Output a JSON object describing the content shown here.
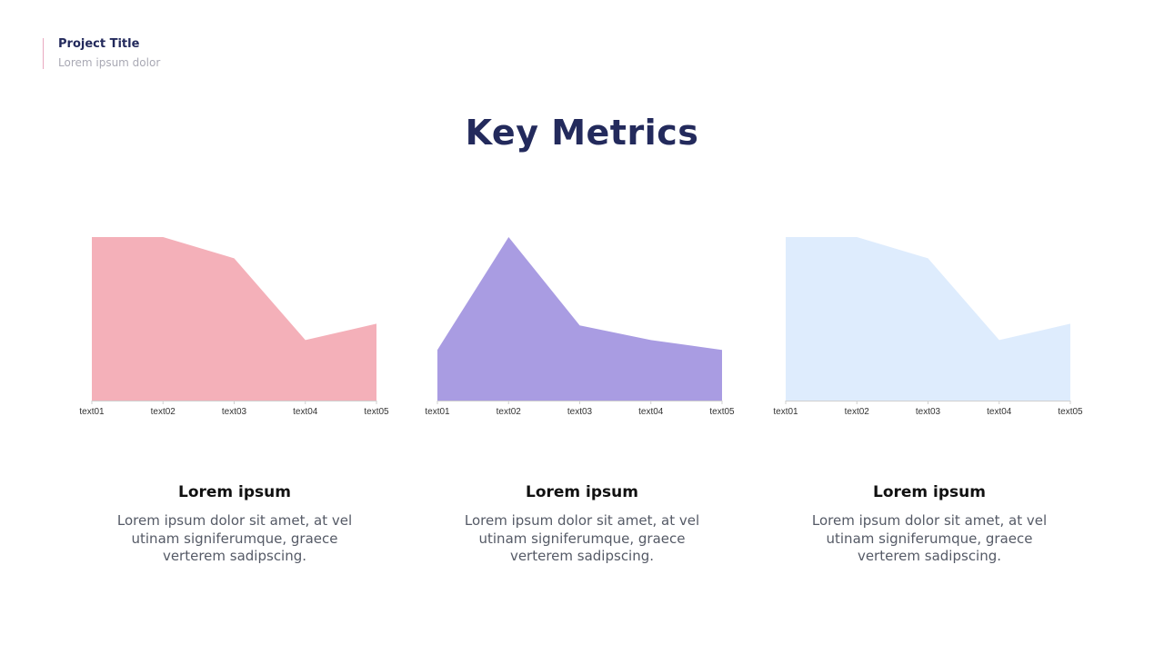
{
  "header": {
    "project_title": "Project Title",
    "project_subtitle": "Lorem ipsum dolor"
  },
  "title": "Key Metrics",
  "colors": {
    "title": "#232a5c",
    "accent_line": "#e9a9c0",
    "chart1": "#f4b0b9",
    "chart2": "#a99ce2",
    "chart3": "#deecfd",
    "axis": "#cfcfcf",
    "tick_label": "#333333"
  },
  "chart_data": [
    {
      "type": "area",
      "categories": [
        "text01",
        "text02",
        "text03",
        "text04",
        "text05"
      ],
      "values": [
        100,
        100,
        87,
        37,
        47
      ],
      "ylim": [
        0,
        100
      ],
      "color": "#f4b0b9"
    },
    {
      "type": "area",
      "categories": [
        "text01",
        "text02",
        "text03",
        "text04",
        "text05"
      ],
      "values": [
        31,
        100,
        46,
        37,
        31
      ],
      "ylim": [
        0,
        100
      ],
      "color": "#a99ce2"
    },
    {
      "type": "area",
      "categories": [
        "text01",
        "text02",
        "text03",
        "text04",
        "text05"
      ],
      "values": [
        100,
        100,
        87,
        37,
        47
      ],
      "ylim": [
        0,
        100
      ],
      "color": "#deecfd"
    }
  ],
  "cards": [
    {
      "heading": "Lorem ipsum",
      "text": "Lorem ipsum dolor sit amet, at vel utinam signiferumque, graece verterem sadipscing."
    },
    {
      "heading": "Lorem ipsum",
      "text": "Lorem ipsum dolor sit amet, at vel utinam signiferumque, graece verterem sadipscing."
    },
    {
      "heading": "Lorem ipsum",
      "text": "Lorem ipsum dolor sit amet, at vel utinam signiferumque, graece verterem sadipscing."
    }
  ]
}
